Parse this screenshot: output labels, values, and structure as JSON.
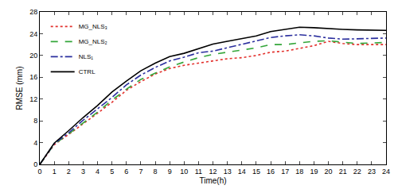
{
  "chart_data": {
    "type": "line",
    "x_label": "Time(h)",
    "y_label": "RMSE (mm)",
    "x": [
      0,
      1,
      2,
      3,
      4,
      5,
      6,
      7,
      8,
      9,
      10,
      11,
      12,
      13,
      14,
      15,
      16,
      17,
      18,
      19,
      20,
      21,
      22,
      23,
      24
    ],
    "xlim": [
      0,
      24
    ],
    "xticks": [
      0,
      1,
      2,
      3,
      4,
      5,
      6,
      7,
      8,
      9,
      10,
      11,
      12,
      13,
      14,
      15,
      16,
      17,
      18,
      19,
      20,
      21,
      22,
      23,
      24
    ],
    "ylim": [
      0,
      28
    ],
    "yticks": [
      0,
      4,
      8,
      12,
      16,
      20,
      24,
      28
    ],
    "grid": false,
    "legend": "upper left",
    "series": [
      {
        "name": "MG_NLS₃",
        "color": "#e3312d",
        "line_style": "dotted",
        "values": [
          0,
          3.6,
          5.5,
          7.4,
          9.4,
          11.4,
          13.6,
          15.2,
          16.6,
          17.6,
          18.2,
          18.6,
          19.0,
          19.4,
          19.6,
          20.0,
          20.6,
          20.8,
          21.3,
          21.8,
          22.6,
          22.2,
          22.0,
          22.0,
          22.0
        ]
      },
      {
        "name": "MG_NLS₂",
        "color": "#34a63a",
        "line_style": "dashed",
        "values": [
          0,
          3.7,
          5.6,
          7.6,
          9.6,
          11.8,
          13.8,
          15.6,
          16.8,
          17.9,
          18.8,
          19.6,
          20.2,
          20.6,
          21.0,
          21.4,
          22.0,
          22.0,
          22.3,
          22.6,
          22.7,
          22.5,
          22.2,
          22.3,
          22.4
        ]
      },
      {
        "name": "NLS₁",
        "color": "#2b2f9e",
        "line_style": "dashdot",
        "values": [
          0,
          3.8,
          5.8,
          8.1,
          10.2,
          12.3,
          14.6,
          16.4,
          17.8,
          19.0,
          19.7,
          20.5,
          20.8,
          21.4,
          22.0,
          22.6,
          23.3,
          23.6,
          23.8,
          23.6,
          23.2,
          23.0,
          23.1,
          23.2,
          23.2
        ]
      },
      {
        "name": "CTRL",
        "color": "#000000",
        "line_style": "solid",
        "values": [
          0,
          3.9,
          6.2,
          8.6,
          10.8,
          13.3,
          15.3,
          17.2,
          18.6,
          19.8,
          20.4,
          21.2,
          22.1,
          22.6,
          23.1,
          23.6,
          24.4,
          24.8,
          25.2,
          25.1,
          24.9,
          24.8,
          24.7,
          24.6,
          24.6
        ]
      }
    ]
  }
}
